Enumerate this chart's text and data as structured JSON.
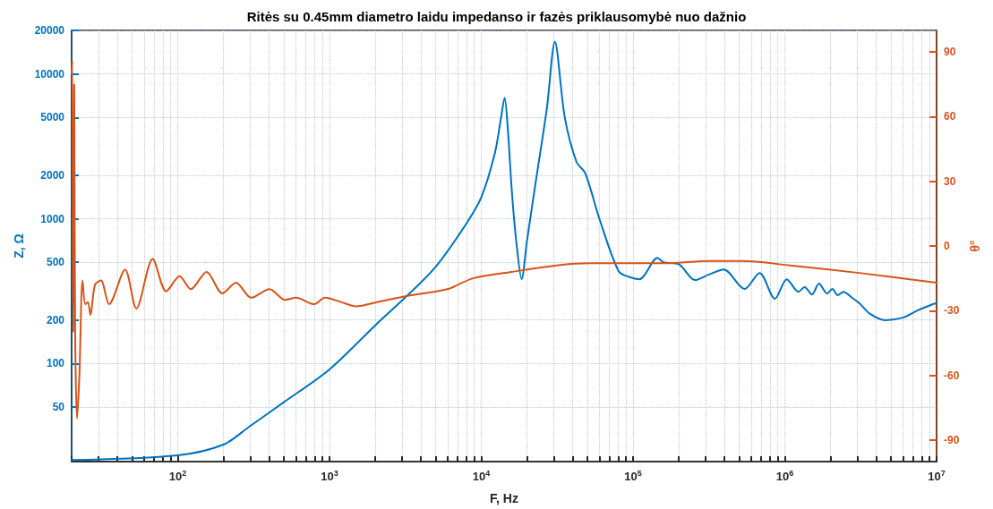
{
  "chart_data": {
    "type": "line",
    "title": "Ritės su 0.45mm diametro laidu impedanso ir fazės priklausomybė nuo dažnio",
    "xlabel": "F, Hz",
    "ylabel": "Z, Ω",
    "y2label": "θ°",
    "log": "xy",
    "grid": true,
    "marker": "none",
    "line_style": "solid",
    "xlim": [
      20,
      10000000
    ],
    "xticks": [
      {
        "value": 20,
        "label": null
      },
      {
        "value": 30,
        "label": null
      },
      {
        "value": 40,
        "label": null
      },
      {
        "value": 50,
        "label": null
      },
      {
        "value": 60,
        "label": null
      },
      {
        "value": 70,
        "label": null
      },
      {
        "value": 80,
        "label": null
      },
      {
        "value": 90,
        "label": null
      },
      {
        "value": 100,
        "label": "10$^{2}$"
      },
      {
        "value": 200,
        "label": null
      },
      {
        "value": 300,
        "label": null
      },
      {
        "value": 400,
        "label": null
      },
      {
        "value": 500,
        "label": null
      },
      {
        "value": 600,
        "label": null
      },
      {
        "value": 700,
        "label": null
      },
      {
        "value": 800,
        "label": null
      },
      {
        "value": 900,
        "label": null
      },
      {
        "value": 1000,
        "label": "10$^{3}$"
      },
      {
        "value": 2000,
        "label": null
      },
      {
        "value": 3000,
        "label": null
      },
      {
        "value": 4000,
        "label": null
      },
      {
        "value": 5000,
        "label": null
      },
      {
        "value": 6000,
        "label": null
      },
      {
        "value": 7000,
        "label": null
      },
      {
        "value": 8000,
        "label": null
      },
      {
        "value": 9000,
        "label": null
      },
      {
        "value": 10000,
        "label": "10$^{4}$"
      },
      {
        "value": 20000,
        "label": null
      },
      {
        "value": 30000,
        "label": null
      },
      {
        "value": 40000,
        "label": null
      },
      {
        "value": 50000,
        "label": null
      },
      {
        "value": 60000,
        "label": null
      },
      {
        "value": 70000,
        "label": null
      },
      {
        "value": 80000,
        "label": null
      },
      {
        "value": 90000,
        "label": null
      },
      {
        "value": 100000,
        "label": "10$^{5}$"
      },
      {
        "value": 200000,
        "label": null
      },
      {
        "value": 300000,
        "label": null
      },
      {
        "value": 400000,
        "label": null
      },
      {
        "value": 500000,
        "label": null
      },
      {
        "value": 600000,
        "label": null
      },
      {
        "value": 700000,
        "label": null
      },
      {
        "value": 800000,
        "label": null
      },
      {
        "value": 900000,
        "label": null
      },
      {
        "value": 1000000,
        "label": "10$^{6}$"
      },
      {
        "value": 2000000,
        "label": null
      },
      {
        "value": 3000000,
        "label": null
      },
      {
        "value": 4000000,
        "label": null
      },
      {
        "value": 5000000,
        "label": null
      },
      {
        "value": 6000000,
        "label": null
      },
      {
        "value": 7000000,
        "label": null
      },
      {
        "value": 8000000,
        "label": null
      },
      {
        "value": 9000000,
        "label": null
      },
      {
        "value": 10000000,
        "label": "10$^{7}$"
      }
    ],
    "ylim": [
      21,
      20000
    ],
    "yticks": [
      50,
      100,
      200,
      500,
      1000,
      2000,
      5000,
      10000,
      20000
    ],
    "y2lim": [
      -100,
      100
    ],
    "y2ticks": [
      -90,
      -60,
      -30,
      0,
      30,
      60,
      90
    ],
    "series": [
      {
        "color": "#0072bd",
        "x": [
          20,
          100,
          200,
          300,
          500,
          1000,
          2030,
          3270,
          5060,
          7940,
          10000,
          12300,
          13500,
          14250,
          15000,
          15900,
          17000,
          18460,
          20000,
          22650,
          27050,
          30550,
          35500,
          42400,
          48500,
          60000,
          80400,
          95000,
          110000,
          145000,
          159000,
          200000,
          256000,
          314000,
          396000,
          542000,
          682000,
          861000,
          1030000,
          1230000,
          1350000,
          1510000,
          1680000,
          1900000,
          2060000,
          2230000,
          2430000,
          2780000,
          3100000,
          3650000,
          4600000,
          6040000,
          7520000,
          9460000,
          10000000
        ],
        "values": [
          21.5,
          23.2,
          27.5,
          37,
          54,
          91,
          186,
          296,
          472,
          919,
          1405,
          2850,
          5000,
          6850,
          4000,
          1550,
          700,
          382,
          700,
          1690,
          5790,
          16700,
          5020,
          2470,
          2057,
          1000,
          434,
          395,
          382,
          536,
          500,
          486,
          377,
          410,
          446,
          327,
          422,
          280,
          382,
          313,
          337,
          300,
          356,
          304,
          327,
          296,
          313,
          284,
          261,
          220,
          199,
          208,
          233,
          257,
          261
        ]
      },
      {
        "color": "#d95319",
        "axis": "y2",
        "x": [
          20,
          20.2,
          20.5,
          20.8,
          21.1,
          21.7,
          22.5,
          23.6,
          24.6,
          25.6,
          26.6,
          28.5,
          31.2,
          35.3,
          45,
          53.4,
          68.4,
          84,
          103,
          122,
          155,
          197,
          242,
          305,
          402,
          511,
          603,
          792,
          933,
          1190,
          1500,
          2060,
          3330,
          5980,
          8830,
          15900,
          31400,
          52000,
          97800,
          162000,
          321000,
          525000,
          1080000,
          3090000,
          10000000
        ],
        "values": [
          80,
          86,
          -40,
          75,
          -40,
          -80,
          -60,
          -16,
          -27,
          -26,
          -32,
          -18,
          -16,
          -27,
          -11,
          -29,
          -6,
          -21,
          -14,
          -20,
          -12,
          -22,
          -17,
          -24,
          -20,
          -25,
          -24,
          -27,
          -24,
          -26,
          -28,
          -26,
          -23,
          -20,
          -15,
          -12,
          -9,
          -8,
          -8,
          -8,
          -7,
          -7,
          -9,
          -12.5,
          -17
        ]
      }
    ]
  }
}
